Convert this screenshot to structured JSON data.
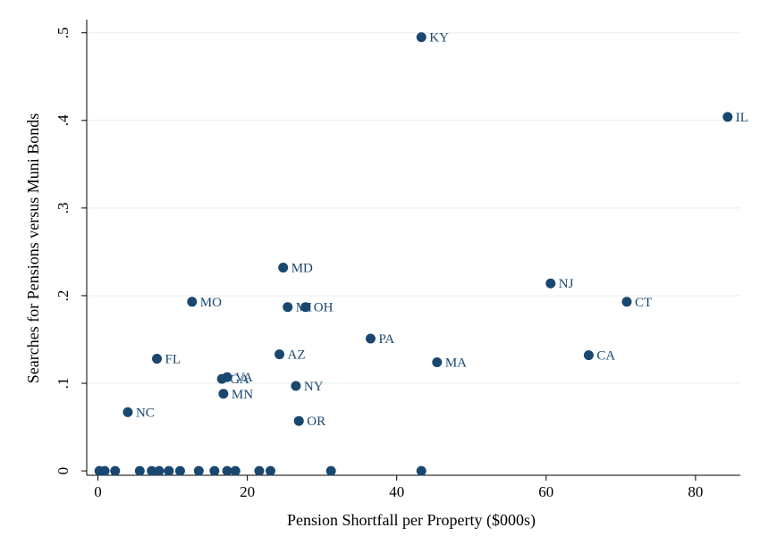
{
  "chart_data": {
    "type": "scatter",
    "xlabel": "Pension Shortfall per Property ($000s)",
    "ylabel": "Searches for Pensions versus Muni Bonds",
    "xlim": [
      -1.5,
      86
    ],
    "ylim": [
      -0.005,
      0.515
    ],
    "x_ticks": [
      0,
      20,
      40,
      60,
      80
    ],
    "x_tick_labels": [
      "0",
      "20",
      "40",
      "60",
      "80"
    ],
    "y_ticks": [
      0,
      0.1,
      0.2,
      0.3,
      0.4,
      0.5
    ],
    "y_tick_labels": [
      "0",
      ".1",
      ".2",
      ".3",
      ".4",
      ".5"
    ],
    "grid": "horizontal",
    "marker_color": "#1a476f",
    "points": [
      {
        "x": 43.3,
        "y": 0.495,
        "label": "KY"
      },
      {
        "x": 84.3,
        "y": 0.404,
        "label": "IL"
      },
      {
        "x": 24.8,
        "y": 0.232,
        "label": "MD"
      },
      {
        "x": 60.6,
        "y": 0.214,
        "label": "NJ"
      },
      {
        "x": 12.6,
        "y": 0.193,
        "label": "MO"
      },
      {
        "x": 70.8,
        "y": 0.193,
        "label": "CT"
      },
      {
        "x": 25.4,
        "y": 0.187,
        "label": "MI"
      },
      {
        "x": 27.8,
        "y": 0.187,
        "label": "OH"
      },
      {
        "x": 36.5,
        "y": 0.151,
        "label": "PA"
      },
      {
        "x": 24.3,
        "y": 0.133,
        "label": "AZ"
      },
      {
        "x": 65.7,
        "y": 0.132,
        "label": "CA"
      },
      {
        "x": 7.9,
        "y": 0.128,
        "label": "FL"
      },
      {
        "x": 45.4,
        "y": 0.124,
        "label": "MA"
      },
      {
        "x": 17.3,
        "y": 0.107,
        "label": "VA"
      },
      {
        "x": 16.6,
        "y": 0.105,
        "label": "GA"
      },
      {
        "x": 26.5,
        "y": 0.097,
        "label": "NY"
      },
      {
        "x": 16.8,
        "y": 0.088,
        "label": "MN"
      },
      {
        "x": 4.0,
        "y": 0.067,
        "label": "NC"
      },
      {
        "x": 26.9,
        "y": 0.057,
        "label": "OR"
      },
      {
        "x": 0.2,
        "y": 0,
        "label": ""
      },
      {
        "x": 0.9,
        "y": 0,
        "label": ""
      },
      {
        "x": 2.3,
        "y": 0,
        "label": ""
      },
      {
        "x": 5.6,
        "y": 0,
        "label": ""
      },
      {
        "x": 7.2,
        "y": 0,
        "label": ""
      },
      {
        "x": 8.2,
        "y": 0,
        "label": ""
      },
      {
        "x": 9.5,
        "y": 0,
        "label": ""
      },
      {
        "x": 11.0,
        "y": 0,
        "label": ""
      },
      {
        "x": 13.5,
        "y": 0,
        "label": ""
      },
      {
        "x": 15.6,
        "y": 0,
        "label": ""
      },
      {
        "x": 17.3,
        "y": 0,
        "label": ""
      },
      {
        "x": 18.4,
        "y": 0,
        "label": ""
      },
      {
        "x": 21.6,
        "y": 0,
        "label": ""
      },
      {
        "x": 23.1,
        "y": 0,
        "label": ""
      },
      {
        "x": 31.2,
        "y": 0,
        "label": ""
      },
      {
        "x": 43.3,
        "y": 0,
        "label": ""
      }
    ]
  }
}
